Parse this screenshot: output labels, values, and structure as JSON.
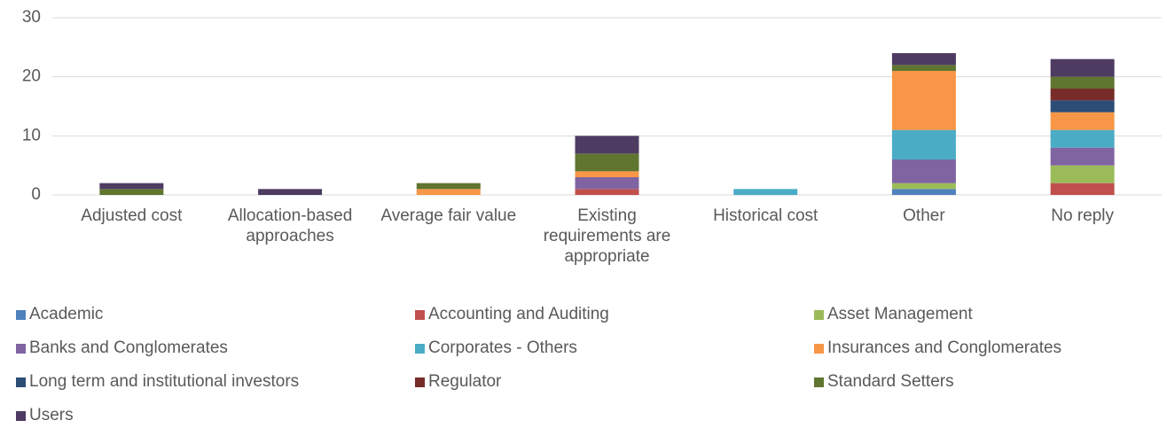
{
  "chart_data": {
    "type": "stacked_bar",
    "categories": [
      "Adjusted cost",
      "Allocation-based approaches",
      "Average fair value",
      "Existing requirements are appropriate",
      "Historical cost",
      "Other",
      "No reply"
    ],
    "series": [
      {
        "name": "Academic",
        "color": "#4f81bd",
        "values": [
          0,
          0,
          0,
          0,
          0,
          1,
          0
        ]
      },
      {
        "name": "Accounting and Auditing",
        "color": "#c0504d",
        "values": [
          0,
          0,
          0,
          1,
          0,
          0,
          2
        ]
      },
      {
        "name": "Asset Management",
        "color": "#9bbb59",
        "values": [
          0,
          0,
          0,
          0,
          0,
          1,
          3
        ]
      },
      {
        "name": "Banks and Conglomerates",
        "color": "#8064a2",
        "values": [
          0,
          0,
          0,
          2,
          0,
          4,
          3
        ]
      },
      {
        "name": "Corporates - Others",
        "color": "#4bacc6",
        "values": [
          0,
          0,
          0,
          0,
          1,
          5,
          3
        ]
      },
      {
        "name": "Insurances and Conglomerates",
        "color": "#f79646",
        "values": [
          0,
          0,
          1,
          1,
          0,
          10,
          3
        ]
      },
      {
        "name": "Long term and institutional investors",
        "color": "#2c4d75",
        "values": [
          0,
          0,
          0,
          0,
          0,
          0,
          2
        ]
      },
      {
        "name": "Regulator",
        "color": "#772c2a",
        "values": [
          0,
          0,
          0,
          0,
          0,
          0,
          2
        ]
      },
      {
        "name": "Standard Setters",
        "color": "#5f7530",
        "values": [
          1,
          0,
          1,
          3,
          0,
          1,
          2
        ]
      },
      {
        "name": "Users",
        "color": "#4d3b62",
        "values": [
          1,
          1,
          0,
          3,
          0,
          2,
          3
        ]
      }
    ],
    "ylim": [
      0,
      30
    ],
    "yticks": [
      0,
      10,
      20,
      30
    ],
    "grid": true,
    "legend": "bottom"
  }
}
